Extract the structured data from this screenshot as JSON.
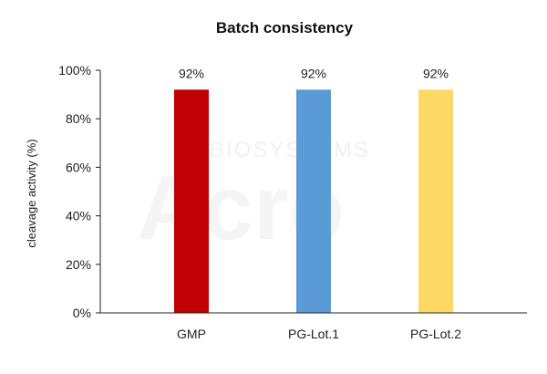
{
  "chart_data": {
    "type": "bar",
    "title": "Batch consistency",
    "xlabel": "",
    "ylabel": "cleavage activity (%)",
    "ylim": [
      0,
      100
    ],
    "yticks": [
      0,
      20,
      40,
      60,
      80,
      100
    ],
    "ytick_labels": [
      "0%",
      "20%",
      "40%",
      "60%",
      "80%",
      "100%"
    ],
    "categories": [
      "GMP",
      "PG-Lot.1",
      "PG-Lot.2"
    ],
    "values": [
      92,
      92,
      92
    ],
    "data_labels": [
      "92%",
      "92%",
      "92%"
    ],
    "colors": [
      "#c00000",
      "#5b9bd5",
      "#ffd966"
    ],
    "grid": false,
    "legend": "none"
  },
  "watermark": {
    "line1": "BIOSYSTEMS",
    "line2": "Acro"
  }
}
